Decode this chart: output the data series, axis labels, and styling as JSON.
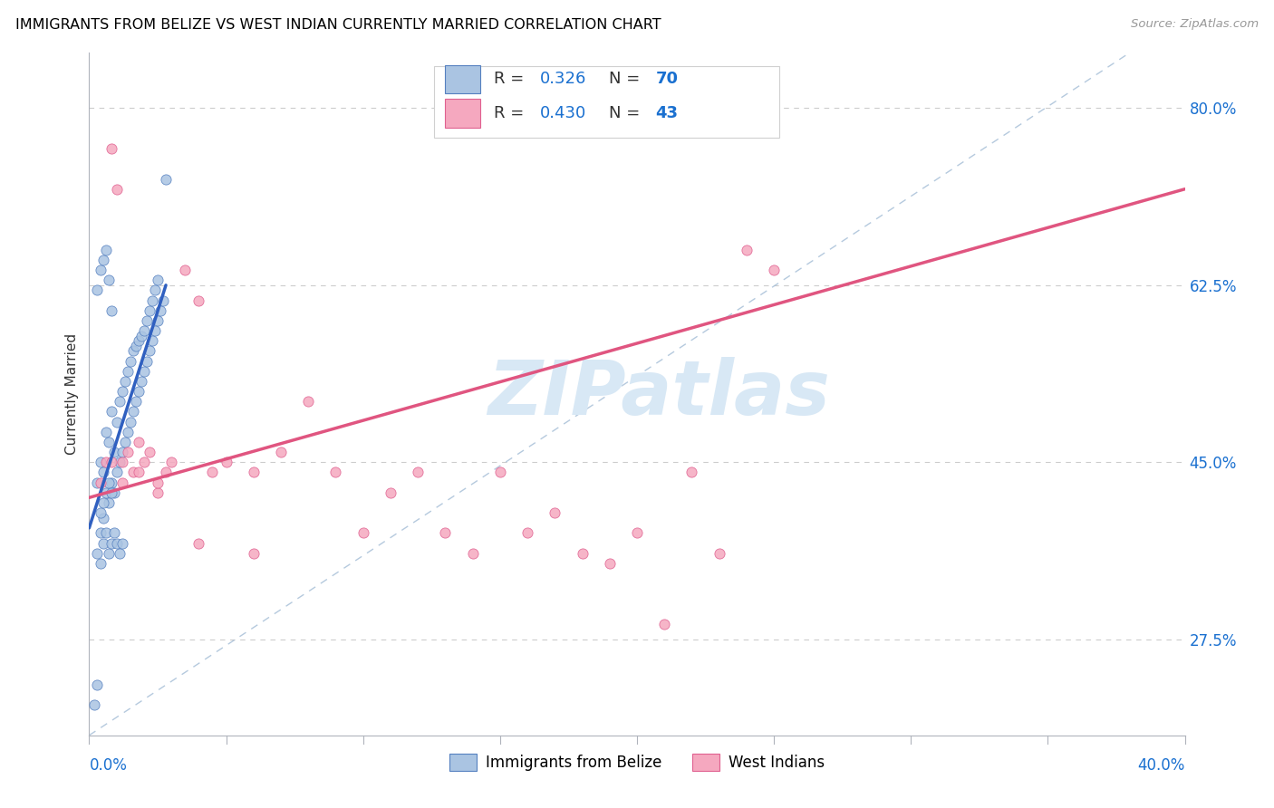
{
  "title": "IMMIGRANTS FROM BELIZE VS WEST INDIAN CURRENTLY MARRIED CORRELATION CHART",
  "source": "Source: ZipAtlas.com",
  "ylabel": "Currently Married",
  "yticks": [
    0.275,
    0.45,
    0.625,
    0.8
  ],
  "ytick_labels": [
    "27.5%",
    "45.0%",
    "62.5%",
    "80.0%"
  ],
  "xlim": [
    0.0,
    0.4
  ],
  "ylim": [
    0.18,
    0.855
  ],
  "xmin_label": "0.0%",
  "xmax_label": "40.0%",
  "belize_R": "0.326",
  "belize_N": "70",
  "westindian_R": "0.430",
  "westindian_N": "43",
  "belize_face_color": "#aac4e2",
  "westindian_face_color": "#f5a8bf",
  "belize_edge_color": "#5580c0",
  "westindian_edge_color": "#e06090",
  "belize_line_color": "#3060c0",
  "westindian_line_color": "#e05580",
  "diagonal_color": "#a8c0d8",
  "R_text_color": "#1a70d0",
  "N_text_color": "#1a70d0",
  "ytick_color": "#1a70d0",
  "xtick_color": "#1a70d0",
  "watermark_text": "ZIPatlas",
  "watermark_color": "#d8e8f5",
  "belize_x": [
    0.002,
    0.003,
    0.003,
    0.004,
    0.004,
    0.005,
    0.005,
    0.006,
    0.006,
    0.007,
    0.007,
    0.008,
    0.008,
    0.009,
    0.009,
    0.01,
    0.01,
    0.011,
    0.011,
    0.012,
    0.012,
    0.013,
    0.013,
    0.014,
    0.014,
    0.015,
    0.015,
    0.016,
    0.016,
    0.017,
    0.017,
    0.018,
    0.018,
    0.019,
    0.019,
    0.02,
    0.02,
    0.021,
    0.021,
    0.022,
    0.022,
    0.023,
    0.023,
    0.024,
    0.024,
    0.025,
    0.025,
    0.026,
    0.027,
    0.028,
    0.003,
    0.004,
    0.005,
    0.006,
    0.007,
    0.008,
    0.009,
    0.01,
    0.011,
    0.012,
    0.003,
    0.004,
    0.005,
    0.006,
    0.007,
    0.008,
    0.007,
    0.008,
    0.004,
    0.005
  ],
  "belize_y": [
    0.21,
    0.23,
    0.43,
    0.38,
    0.45,
    0.395,
    0.44,
    0.42,
    0.48,
    0.41,
    0.47,
    0.43,
    0.5,
    0.42,
    0.46,
    0.44,
    0.49,
    0.45,
    0.51,
    0.46,
    0.52,
    0.47,
    0.53,
    0.48,
    0.54,
    0.49,
    0.55,
    0.5,
    0.56,
    0.51,
    0.565,
    0.52,
    0.57,
    0.53,
    0.575,
    0.54,
    0.58,
    0.55,
    0.59,
    0.56,
    0.6,
    0.57,
    0.61,
    0.58,
    0.62,
    0.59,
    0.63,
    0.6,
    0.61,
    0.73,
    0.36,
    0.35,
    0.37,
    0.38,
    0.36,
    0.37,
    0.38,
    0.37,
    0.36,
    0.37,
    0.62,
    0.64,
    0.65,
    0.66,
    0.63,
    0.6,
    0.43,
    0.42,
    0.4,
    0.41
  ],
  "westindian_x": [
    0.004,
    0.006,
    0.008,
    0.01,
    0.012,
    0.014,
    0.016,
    0.018,
    0.02,
    0.022,
    0.025,
    0.028,
    0.03,
    0.035,
    0.04,
    0.045,
    0.05,
    0.06,
    0.07,
    0.08,
    0.09,
    0.1,
    0.11,
    0.12,
    0.13,
    0.14,
    0.15,
    0.16,
    0.17,
    0.18,
    0.19,
    0.2,
    0.21,
    0.22,
    0.23,
    0.24,
    0.25,
    0.008,
    0.012,
    0.018,
    0.025,
    0.04,
    0.06
  ],
  "westindian_y": [
    0.43,
    0.45,
    0.76,
    0.72,
    0.45,
    0.46,
    0.44,
    0.47,
    0.45,
    0.46,
    0.42,
    0.44,
    0.45,
    0.64,
    0.61,
    0.44,
    0.45,
    0.44,
    0.46,
    0.51,
    0.44,
    0.38,
    0.42,
    0.44,
    0.38,
    0.36,
    0.44,
    0.38,
    0.4,
    0.36,
    0.35,
    0.38,
    0.29,
    0.44,
    0.36,
    0.66,
    0.64,
    0.45,
    0.43,
    0.44,
    0.43,
    0.37,
    0.36
  ],
  "belize_trend_x0": 0.0,
  "belize_trend_y0": 0.385,
  "belize_trend_x1": 0.028,
  "belize_trend_y1": 0.625,
  "wi_trend_x0": 0.0,
  "wi_trend_y0": 0.415,
  "wi_trend_x1": 0.4,
  "wi_trend_y1": 0.72
}
